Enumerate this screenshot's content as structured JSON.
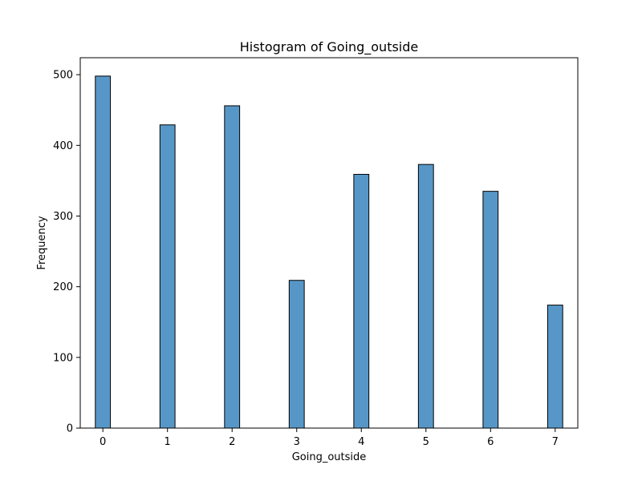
{
  "chart_data": {
    "type": "bar",
    "title": "Histogram of Going_outside",
    "xlabel": "Going_outside",
    "ylabel": "Frequency",
    "x": [
      0,
      1,
      2,
      3,
      4,
      5,
      6,
      7
    ],
    "values": [
      498,
      429,
      456,
      209,
      359,
      373,
      335,
      174
    ],
    "bin_width": 0.2333,
    "xlim": [
      -0.35,
      7.35
    ],
    "ylim": [
      0,
      524
    ],
    "xticks": [
      0,
      1,
      2,
      3,
      4,
      5,
      6,
      7
    ],
    "yticks": [
      0,
      100,
      200,
      300,
      400,
      500
    ],
    "grid": false,
    "bar_color": "#5797c8",
    "edge_color": "#000000"
  }
}
